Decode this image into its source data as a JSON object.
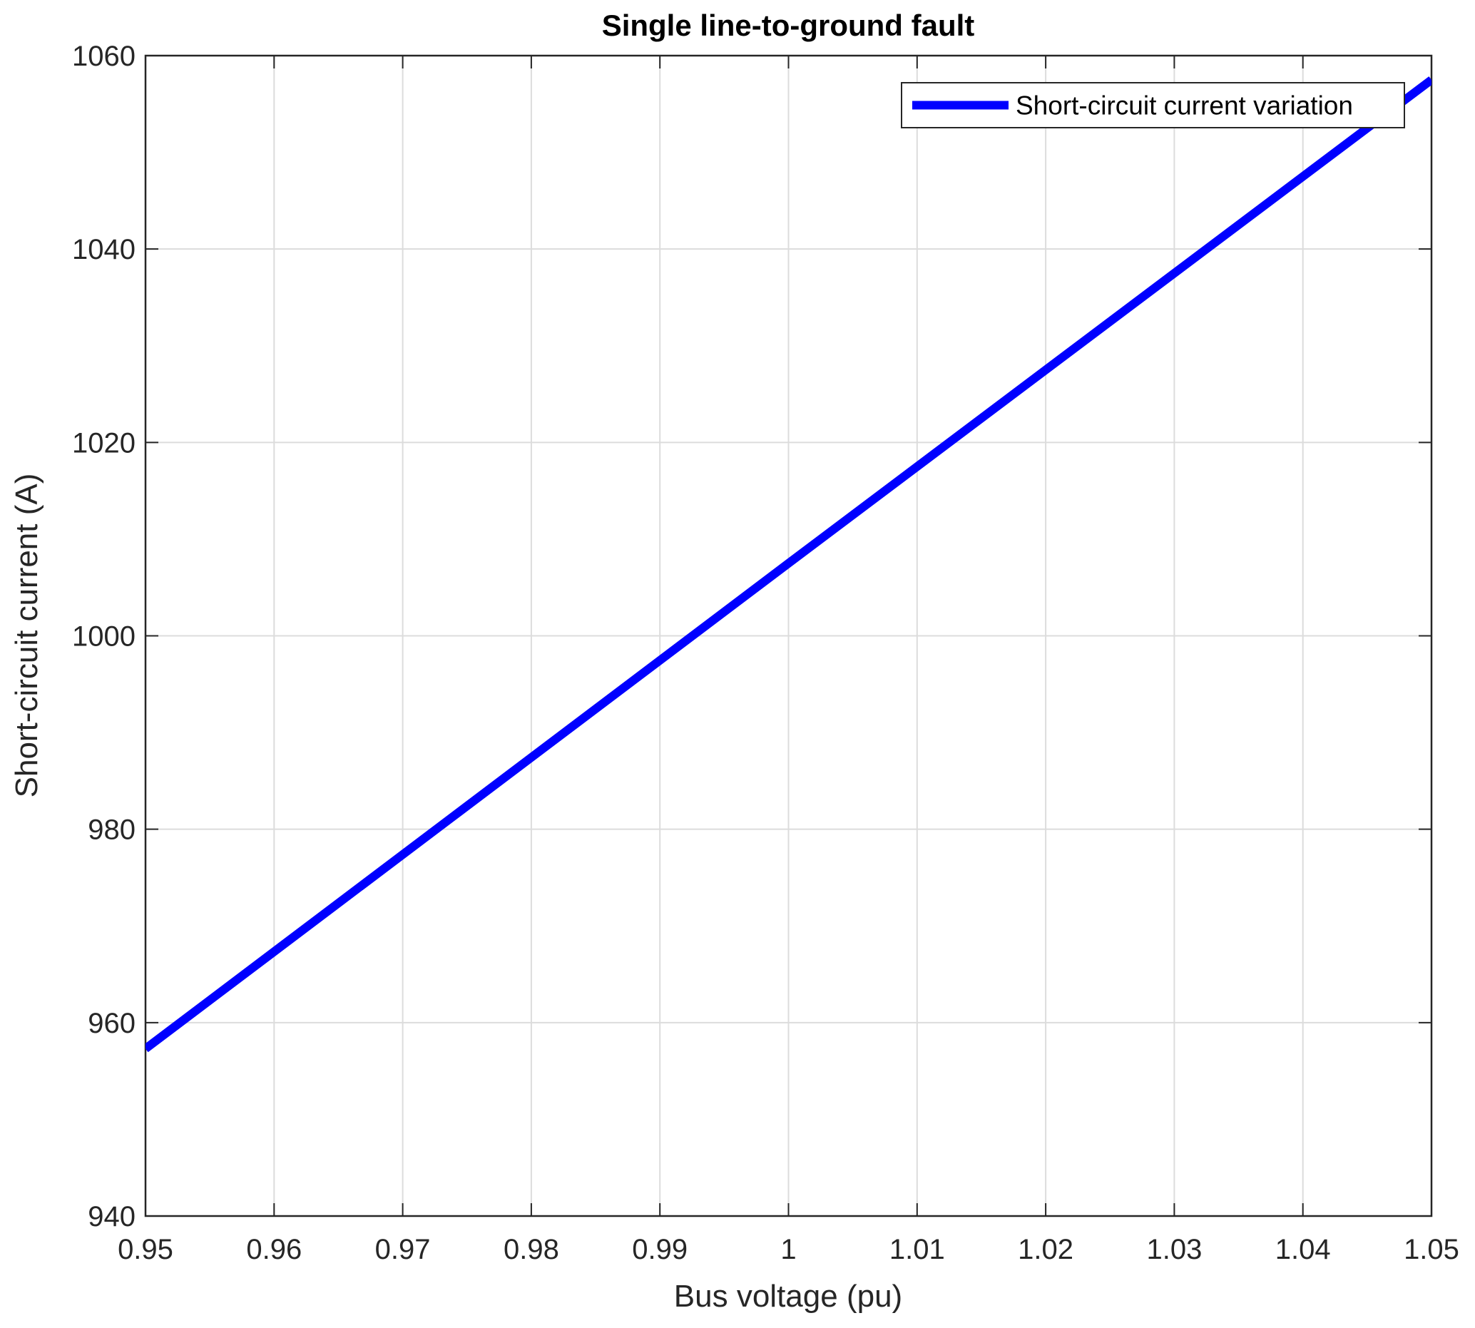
{
  "chart_data": {
    "type": "line",
    "title": "Single line-to-ground fault",
    "xlabel": "Bus voltage (pu)",
    "ylabel": "Short-circuit current (A)",
    "x": [
      0.95,
      1.0,
      1.05
    ],
    "series": [
      {
        "name": "Short-circuit current variation",
        "color": "#0000ff",
        "values": [
          957.3,
          1007.5,
          1057.5
        ]
      }
    ],
    "xlim": [
      0.95,
      1.05
    ],
    "xticks": [
      0.95,
      0.96,
      0.97,
      0.98,
      0.99,
      1,
      1.01,
      1.02,
      1.03,
      1.04,
      1.05
    ],
    "ylim": [
      940,
      1060
    ],
    "yticks": [
      940,
      960,
      980,
      1000,
      1020,
      1040,
      1060
    ],
    "grid": true,
    "legend": "upper-right"
  }
}
